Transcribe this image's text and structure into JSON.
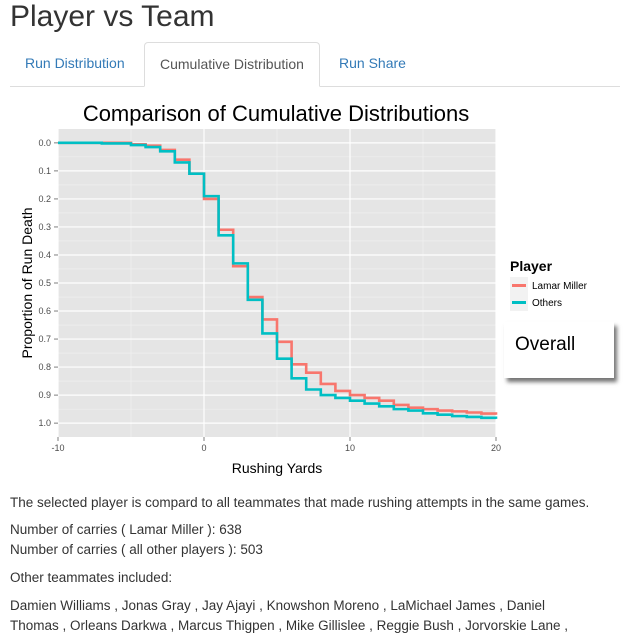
{
  "page": {
    "title": "Player vs Team"
  },
  "tabs": [
    {
      "label": "Run Distribution",
      "active": false
    },
    {
      "label": "Cumulative Distribution",
      "active": true
    },
    {
      "label": "Run Share",
      "active": false
    }
  ],
  "chart_data": {
    "type": "line",
    "step": true,
    "title": "Comparison of Cumulative Distributions",
    "xlabel": "Rushing Yards",
    "ylabel": "Proportion of Run Death",
    "xlim": [
      -10,
      20
    ],
    "ylim": [
      0.0,
      1.0
    ],
    "y_reversed": true,
    "x_ticks": [
      -10,
      0,
      10,
      20
    ],
    "y_ticks": [
      "0.0",
      "0.1",
      "0.2",
      "0.3",
      "0.4",
      "0.5",
      "0.6",
      "0.7",
      "0.8",
      "0.9",
      "1.0"
    ],
    "grid": true,
    "legend": {
      "title": "Player",
      "placement": "right"
    },
    "series": [
      {
        "name": "Lamar Miller",
        "color": "#F8766D",
        "x": [
          -10,
          -5,
          -4,
          -3,
          -2,
          -1,
          0,
          1,
          2,
          3,
          4,
          5,
          6,
          7,
          8,
          9,
          10,
          11,
          12,
          13,
          14,
          15,
          16,
          17,
          18,
          19,
          20
        ],
        "y": [
          0.0,
          0.005,
          0.01,
          0.025,
          0.06,
          0.11,
          0.2,
          0.31,
          0.44,
          0.55,
          0.63,
          0.71,
          0.79,
          0.82,
          0.86,
          0.885,
          0.9,
          0.91,
          0.92,
          0.935,
          0.945,
          0.95,
          0.955,
          0.958,
          0.962,
          0.966,
          0.97
        ]
      },
      {
        "name": "Others",
        "color": "#00BFC4",
        "x": [
          -10,
          -7,
          -5,
          -4,
          -3,
          -2,
          -1,
          0,
          1,
          2,
          3,
          4,
          5,
          6,
          7,
          8,
          9,
          10,
          11,
          12,
          13,
          14,
          15,
          16,
          17,
          18,
          19,
          20
        ],
        "y": [
          0.0,
          0.002,
          0.008,
          0.015,
          0.03,
          0.07,
          0.11,
          0.19,
          0.33,
          0.43,
          0.56,
          0.68,
          0.77,
          0.84,
          0.88,
          0.9,
          0.91,
          0.92,
          0.93,
          0.94,
          0.95,
          0.955,
          0.965,
          0.97,
          0.975,
          0.978,
          0.981,
          0.985
        ]
      }
    ]
  },
  "overall": {
    "label": "Overall"
  },
  "info": {
    "description": "The selected player is compard to all teammates that made rushing attempts in the same games.",
    "carries_player": "Number of carries ( Lamar Miller ): 638",
    "carries_others": "Number of carries ( all other players ): 503",
    "teammates_heading": "Other teammates included:",
    "teammates_line1": "Damien Williams , Jonas Gray , Jay Ajayi , Knowshon Moreno , LaMichael James , Daniel",
    "teammates_line2": "Thomas , Orleans Darkwa , Marcus Thigpen , Mike Gillislee , Reggie Bush , Jorvorskie Lane ,"
  }
}
